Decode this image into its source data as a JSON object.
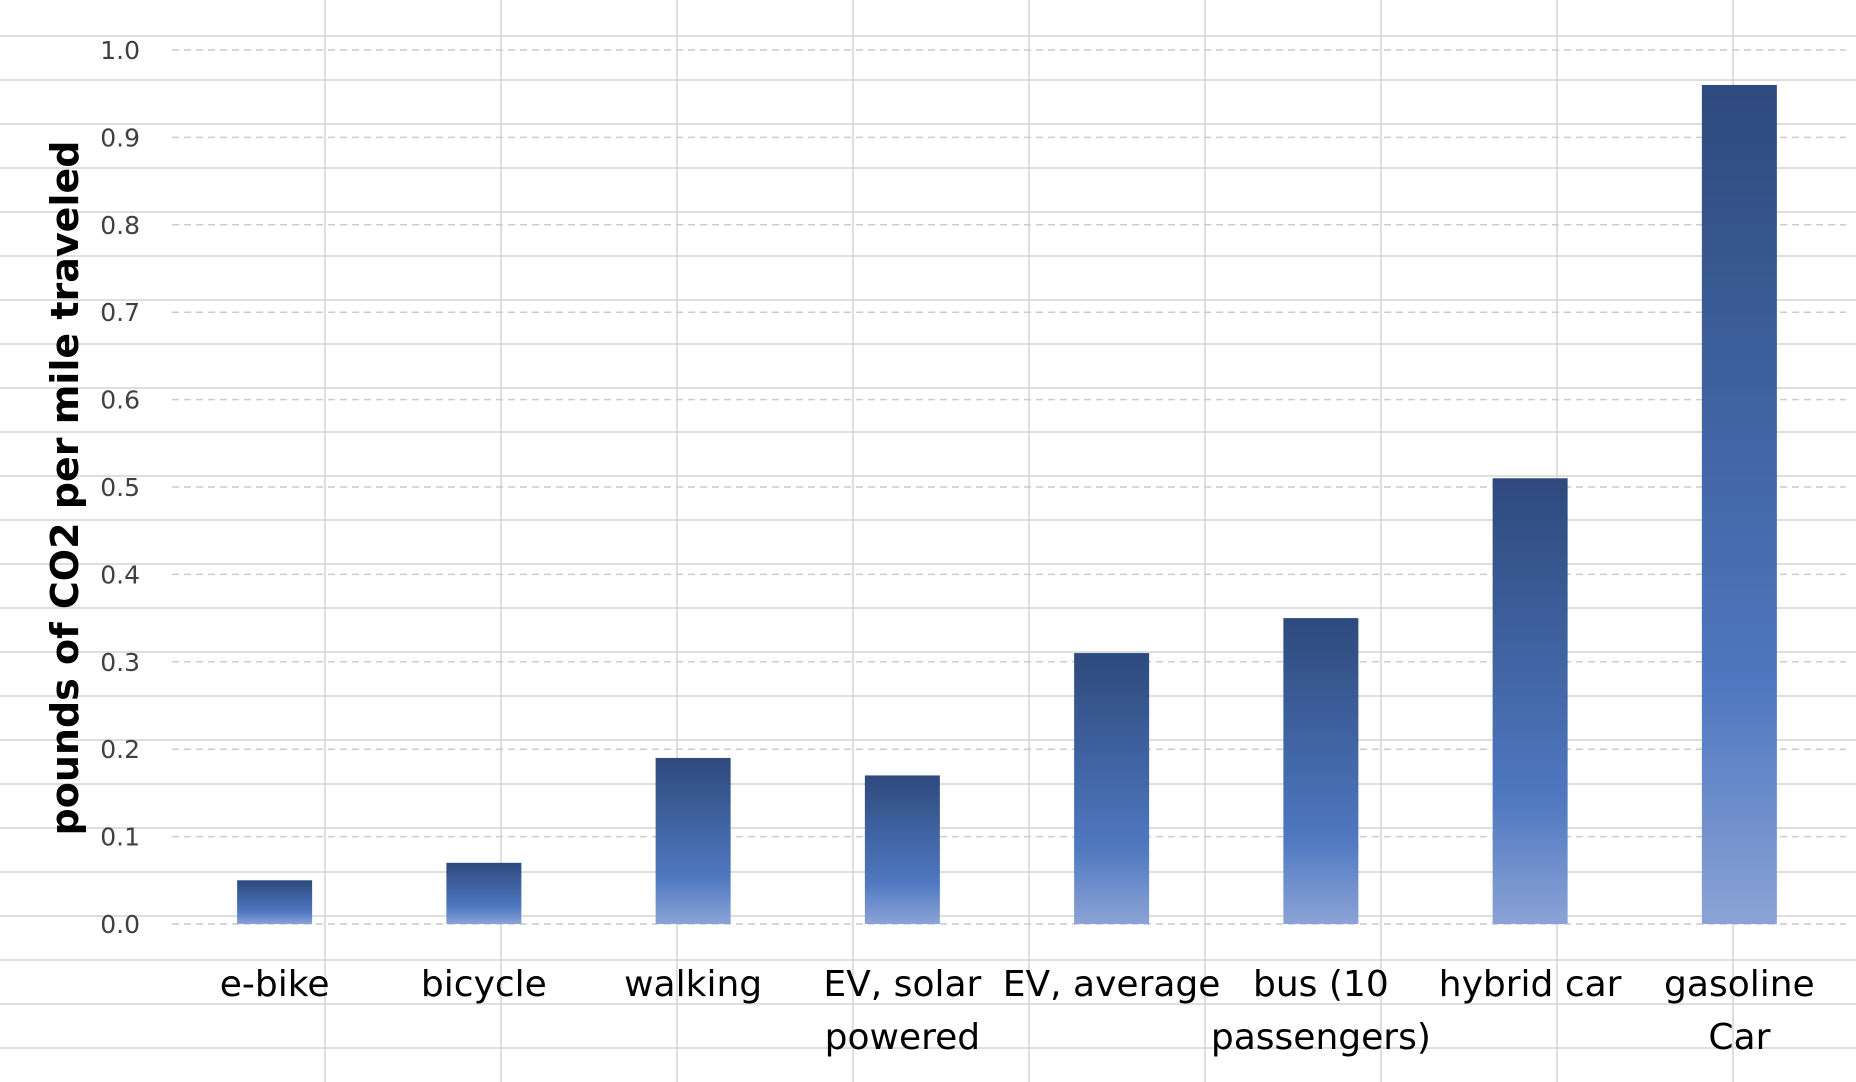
{
  "chart_data": {
    "type": "bar",
    "title": "",
    "xlabel": "",
    "ylabel": "pounds of CO2 per mile traveled",
    "ylim": [
      0,
      1.0
    ],
    "yticks": [
      "0.0",
      "0.1",
      "0.2",
      "0.3",
      "0.4",
      "0.5",
      "0.6",
      "0.7",
      "0.8",
      "0.9",
      "1.0"
    ],
    "categories": [
      "e-bike",
      "bicycle",
      "walking",
      "EV, solar powered",
      "EV, average",
      "bus (10 passengers)",
      "hybrid car",
      "gasoline Car"
    ],
    "category_lines": [
      [
        "e-bike"
      ],
      [
        "bicycle"
      ],
      [
        "walking"
      ],
      [
        "EV, solar",
        "powered"
      ],
      [
        "EV, average"
      ],
      [
        "bus (10",
        "passengers)"
      ],
      [
        "hybrid car"
      ],
      [
        "gasoline",
        "Car"
      ]
    ],
    "values": [
      0.05,
      0.07,
      0.19,
      0.17,
      0.31,
      0.35,
      0.51,
      0.96
    ],
    "grid": true,
    "legend": "none",
    "colors": {
      "bar_top": "#2e4a7d",
      "bar_mid": "#4f78c0",
      "bar_bottom": "#8ba3d6",
      "gridline": "#cccccc",
      "sheet_grid": "#d4d4d4"
    }
  }
}
